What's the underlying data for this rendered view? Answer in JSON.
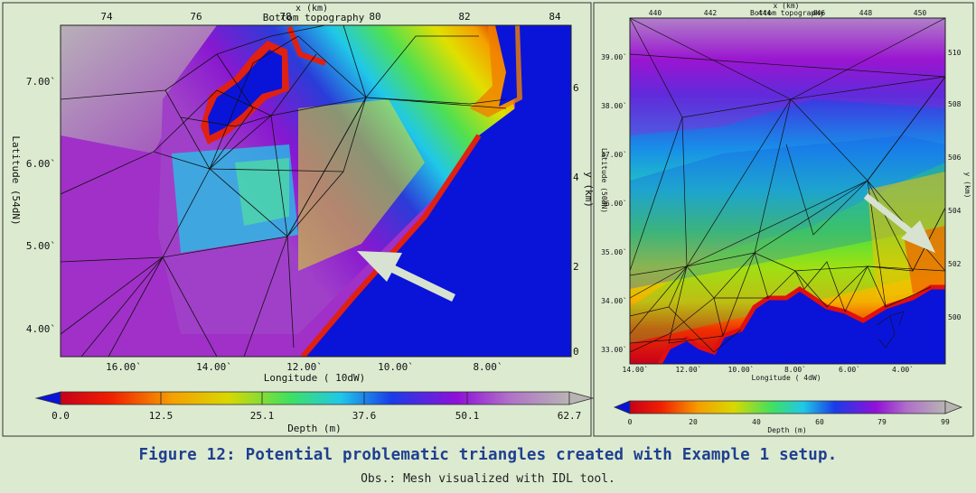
{
  "caption": {
    "title": "Figure 12: Potential problematic triangles created with Example 1 setup.",
    "subtitle": "Obs.: Mesh visualized with IDL tool."
  },
  "left_panel": {
    "plot_title": "Bottom topography",
    "top_axis_label": "x (km)",
    "top_ticks": [
      "74",
      "76",
      "78",
      "80",
      "82",
      "84"
    ],
    "bottom_axis_label": "Longitude ( 10dW)",
    "bottom_ticks": [
      "16.00`",
      "14.00`",
      "12.00`",
      "10.00`",
      "8.00`"
    ],
    "left_axis_label": "Latitude (54dN)",
    "left_ticks": [
      "7.00`",
      "6.00`",
      "5.00`",
      "4.00`"
    ],
    "right_axis_label": "y (km)",
    "right_ticks": [
      "6",
      "4",
      "2",
      "0"
    ],
    "colorbar_label": "Depth (m)",
    "colorbar_ticks": [
      "0.0",
      "12.5",
      "25.1",
      "37.6",
      "50.1",
      "62.7"
    ]
  },
  "right_panel": {
    "plot_title": "Bottom topography",
    "top_axis_label": "x (km)",
    "top_ticks": [
      "440",
      "442",
      "444",
      "446",
      "448",
      "450"
    ],
    "bottom_axis_label": "Longitude ( 4dW)",
    "bottom_ticks": [
      "14.00`",
      "12.00`",
      "10.00`",
      "8.00`",
      "6.00`",
      "4.00`"
    ],
    "left_axis_label": "Latitude (50dN)",
    "left_ticks": [
      "39.00`",
      "38.00`",
      "37.00`",
      "36.00`",
      "35.00`",
      "34.00`",
      "33.00`"
    ],
    "right_axis_label": "y (km)",
    "right_ticks": [
      "510",
      "508",
      "506",
      "504",
      "502",
      "500"
    ],
    "colorbar_label": "Depth (m)",
    "colorbar_ticks": [
      "0",
      "20",
      "40",
      "60",
      "79",
      "99"
    ]
  },
  "colors": {
    "background": "#dcebd0",
    "land": "#0a14d8",
    "caption_title": "#1f3f8f",
    "arrow": "#d8e2d0"
  }
}
